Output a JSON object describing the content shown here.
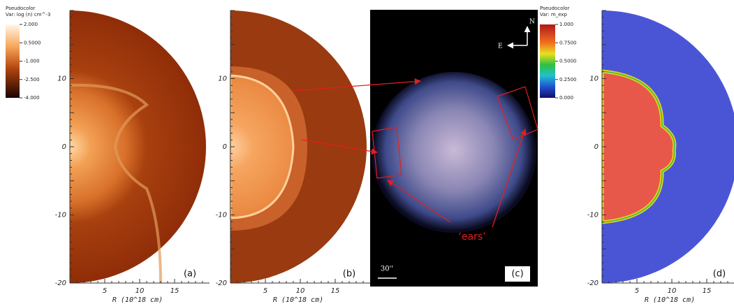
{
  "panels": [
    {
      "label": "(a)",
      "y_ticks": [
        "10",
        "0",
        "-10",
        "-20"
      ],
      "x_ticks": [
        "5",
        "10",
        "15"
      ],
      "x_axis_label": "R (10^18 cm)"
    },
    {
      "label": "(b)",
      "y_ticks": [
        "10",
        "0",
        "-10",
        "-20"
      ],
      "x_ticks": [
        "5",
        "10",
        "15"
      ],
      "x_axis_label": "R (10^18 cm)"
    },
    {
      "label": "(c)"
    },
    {
      "label": "(d)",
      "y_ticks": [
        "10",
        "0",
        "-10",
        "-20"
      ],
      "x_ticks": [
        "5",
        "10",
        "15"
      ],
      "x_axis_label": "R (10^18 cm)"
    }
  ],
  "colorbars": [
    {
      "title": "Pseudocolor",
      "variable": "Var: log (n) cm^-3",
      "labels": [
        "2.000",
        "0.5000",
        "-1.000",
        "-2.500",
        "-4.000"
      ]
    },
    {
      "title": "Pseudocolor",
      "variable": "Var: m_exp",
      "labels": [
        "1.000",
        "0.7500",
        "0.5000",
        "0.2500",
        "0.000"
      ]
    }
  ],
  "image_annotations": {
    "north": "N",
    "east": "E",
    "scale": "30''",
    "ears": "‘ears’"
  }
}
